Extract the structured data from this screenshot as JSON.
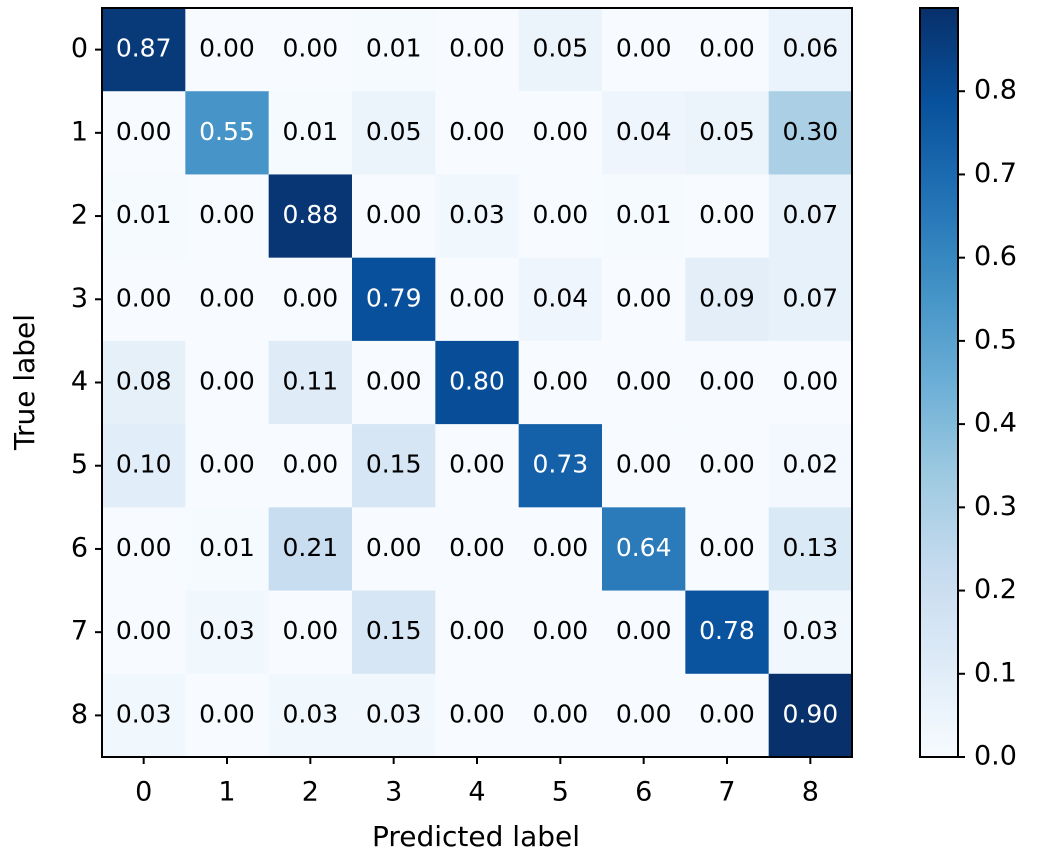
{
  "chart_data": {
    "type": "heatmap",
    "xlabel": "Predicted label",
    "ylabel": "True label",
    "xcategories": [
      "0",
      "1",
      "2",
      "3",
      "4",
      "5",
      "6",
      "7",
      "8"
    ],
    "ycategories": [
      "0",
      "1",
      "2",
      "3",
      "4",
      "5",
      "6",
      "7",
      "8"
    ],
    "values": [
      [
        0.87,
        0,
        0,
        0.01,
        0,
        0.05,
        0,
        0,
        0.06
      ],
      [
        0,
        0.55,
        0.01,
        0.05,
        0,
        0,
        0.04,
        0.05,
        0.3
      ],
      [
        0.01,
        0,
        0.88,
        0,
        0.03,
        0,
        0.01,
        0,
        0.07
      ],
      [
        0,
        0,
        0,
        0.79,
        0,
        0.04,
        0,
        0.09,
        0.07
      ],
      [
        0.08,
        0,
        0.11,
        0,
        0.8,
        0,
        0,
        0,
        0
      ],
      [
        0.1,
        0,
        0,
        0.15,
        0,
        0.73,
        0,
        0,
        0.02
      ],
      [
        0,
        0.01,
        0.21,
        0,
        0,
        0,
        0.64,
        0,
        0.13
      ],
      [
        0,
        0.03,
        0,
        0.15,
        0,
        0,
        0,
        0.78,
        0.03
      ],
      [
        0.03,
        0,
        0.03,
        0.03,
        0,
        0,
        0,
        0,
        0.9
      ]
    ],
    "value_labels": [
      [
        "0.87",
        "0.00",
        "0.00",
        "0.01",
        "0.00",
        "0.05",
        "0.00",
        "0.00",
        "0.06"
      ],
      [
        "0.00",
        "0.55",
        "0.01",
        "0.05",
        "0.00",
        "0.00",
        "0.04",
        "0.05",
        "0.30"
      ],
      [
        "0.01",
        "0.00",
        "0.88",
        "0.00",
        "0.03",
        "0.00",
        "0.01",
        "0.00",
        "0.07"
      ],
      [
        "0.00",
        "0.00",
        "0.00",
        "0.79",
        "0.00",
        "0.04",
        "0.00",
        "0.09",
        "0.07"
      ],
      [
        "0.08",
        "0.00",
        "0.11",
        "0.00",
        "0.80",
        "0.00",
        "0.00",
        "0.00",
        "0.00"
      ],
      [
        "0.10",
        "0.00",
        "0.00",
        "0.15",
        "0.00",
        "0.73",
        "0.00",
        "0.00",
        "0.02"
      ],
      [
        "0.00",
        "0.01",
        "0.21",
        "0.00",
        "0.00",
        "0.00",
        "0.64",
        "0.00",
        "0.13"
      ],
      [
        "0.00",
        "0.03",
        "0.00",
        "0.15",
        "0.00",
        "0.00",
        "0.00",
        "0.78",
        "0.03"
      ],
      [
        "0.03",
        "0.00",
        "0.03",
        "0.03",
        "0.00",
        "0.00",
        "0.00",
        "0.00",
        "0.90"
      ]
    ],
    "clim": [
      0,
      0.9
    ],
    "cticks": [
      {
        "value": 0,
        "label": "0.0"
      },
      0.1,
      0.2,
      0.3,
      0.4,
      0.5,
      0.6,
      0.7,
      0.8
    ],
    "colormap": [
      "#f7fbff",
      "#deebf7",
      "#c6dbef",
      "#9ecae1",
      "#6baed6",
      "#4292c6",
      "#2171b5",
      "#08519c",
      "#08306b"
    ]
  }
}
